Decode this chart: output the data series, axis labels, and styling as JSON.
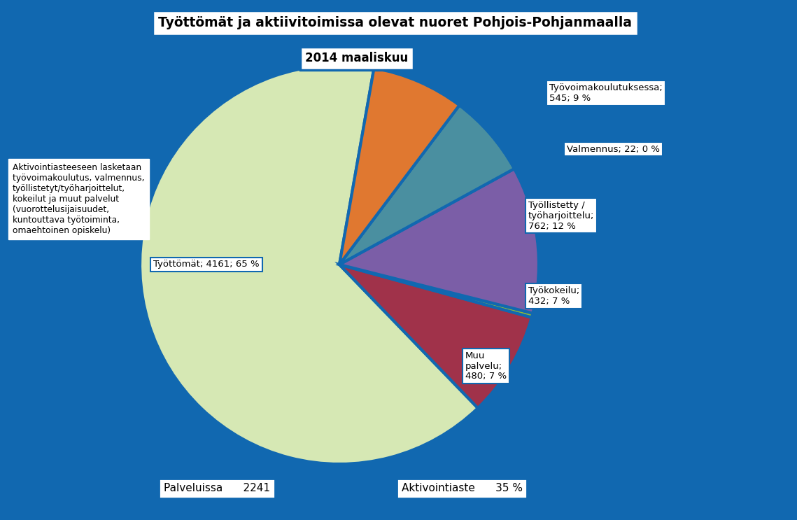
{
  "title": "Työttömät ja aktiivitoimissa olevat nuoret Pohjois-Pohjanmaalla",
  "subtitle": "2014 maaliskuu",
  "background_color": "#1168B0",
  "slices": [
    {
      "label": "Työttömät",
      "value": 4161,
      "pct": 65,
      "color": "#d6e8b4"
    },
    {
      "label": "Työvoimakoulutuksessa",
      "value": 545,
      "pct": 9,
      "color": "#a0324a"
    },
    {
      "label": "Valmennus",
      "value": 22,
      "pct": 0,
      "color": "#8db83a"
    },
    {
      "label": "Työllistetty /\ntyöharjoittelu",
      "value": 762,
      "pct": 12,
      "color": "#7b5ea7"
    },
    {
      "label": "Työkokeilu",
      "value": 432,
      "pct": 7,
      "color": "#4a8fa0"
    },
    {
      "label": "Muu\npalvelu",
      "value": 480,
      "pct": 7,
      "color": "#e07830"
    }
  ],
  "wedge_edge_color": "#1168B0",
  "wedge_linewidth": 3,
  "note_text": "Aktivointiasteeseen lasketaan\ntyövoimakoulutus, valmennus,\ntyöllistetyt/työharjoittelut,\nkokeilut ja muut palvelut\n(vuorottelusijaisuudet,\nkuntouttava työtoiminta,\nomaehtoinen opiskelu)",
  "bottom_left_label": "Palveluissa",
  "bottom_left_value": "2241",
  "bottom_right_label": "Aktivointiaste",
  "bottom_right_value": "35 %"
}
